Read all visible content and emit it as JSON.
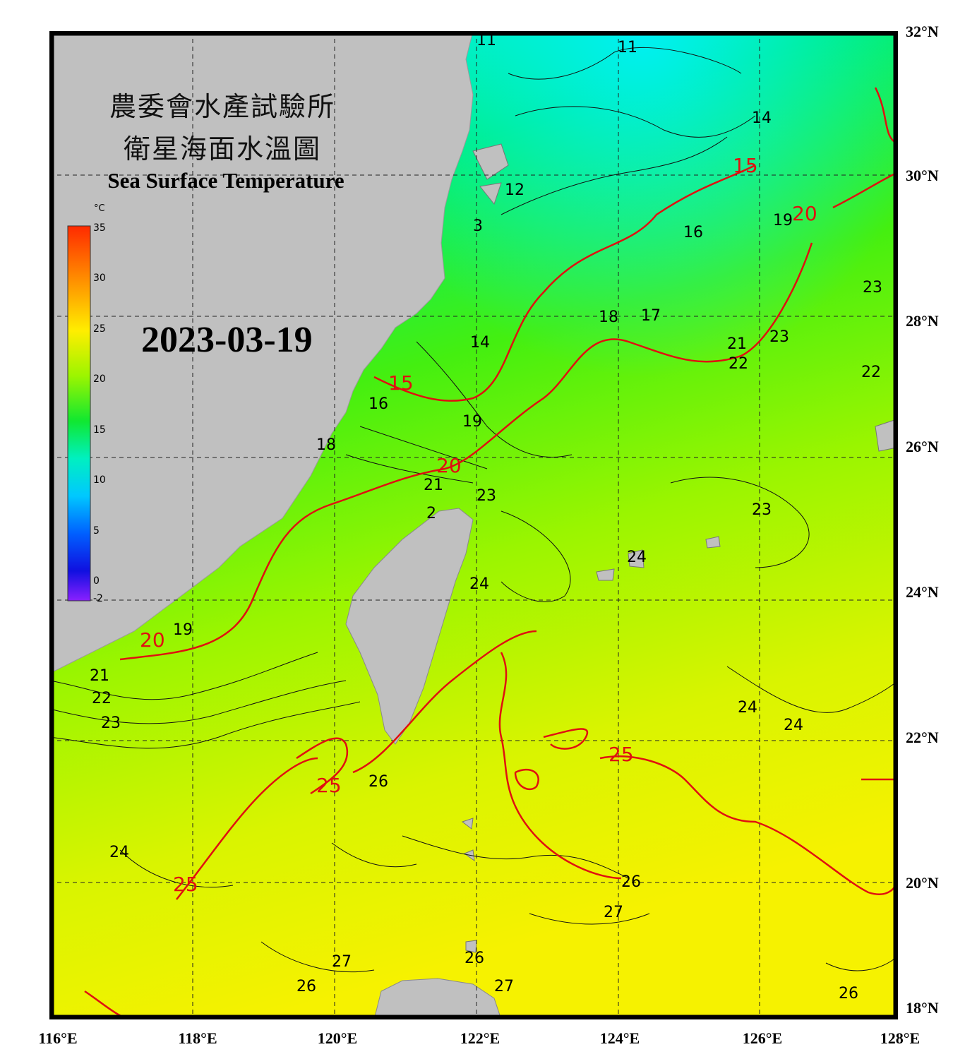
{
  "title": {
    "zh_line1": "農委會水產試驗所",
    "zh_line2": "衛星海面水溫圖",
    "en": "Sea Surface Temperature"
  },
  "date": "2023-03-19",
  "colorbar": {
    "unit": "°C",
    "ticks": [
      "35",
      "30",
      "25",
      "20",
      "15",
      "10",
      "5",
      "0",
      "-2"
    ],
    "min": -2,
    "max": 35
  },
  "axes": {
    "lon_labels": [
      "116°E",
      "118°E",
      "120°E",
      "122°E",
      "124°E",
      "126°E",
      "128°E"
    ],
    "lat_labels": [
      "32°N",
      "30°N",
      "28°N",
      "26°N",
      "24°N",
      "22°N",
      "20°N",
      "18°N"
    ],
    "lon_range": [
      116,
      128
    ],
    "lat_range": [
      18,
      32
    ]
  },
  "isotherm_labels_black": [
    "11",
    "11",
    "14",
    "12",
    "3",
    "16",
    "19",
    "18",
    "17",
    "14",
    "21",
    "22",
    "23",
    "23",
    "22",
    "16",
    "18",
    "19",
    "21",
    "23",
    "23",
    "2",
    "24",
    "24",
    "19",
    "21",
    "22",
    "23",
    "24",
    "24",
    "26",
    "26",
    "24",
    "27",
    "27",
    "26",
    "27",
    "26",
    "26"
  ],
  "isotherm_labels_red": [
    "15",
    "20",
    "15",
    "20",
    "20",
    "25",
    "25",
    "25"
  ],
  "colors": {
    "land": "#c0c0c0",
    "red_isotherm": "#e01010",
    "frame": "#000000"
  }
}
